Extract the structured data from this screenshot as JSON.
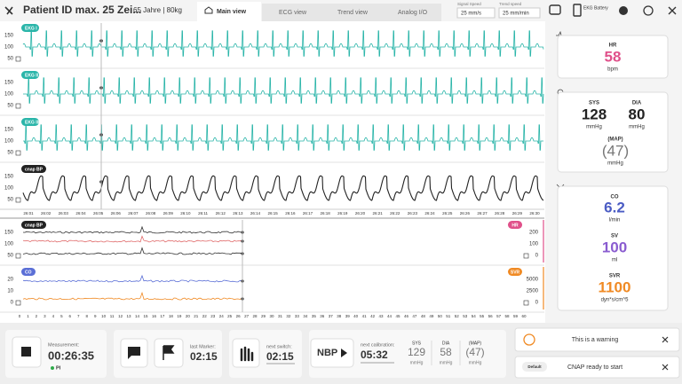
{
  "header": {
    "title": "Patient ID max. 25 Zei...",
    "info": "65 Jahre |  80kg",
    "tabs": [
      "Main view",
      "ECG view",
      "Trend view",
      "Analog I/O"
    ],
    "signal_speed_label": "Signal Speed",
    "signal_speed": "25 mm/s",
    "trend_speed_label": "Trend speed",
    "trend_speed": "25 mm/min",
    "battery": "EKG Battery"
  },
  "waveforms": {
    "channels": [
      {
        "label": "EKG I",
        "yticks": [
          150,
          100,
          50
        ]
      },
      {
        "label": "EKG II",
        "yticks": [
          150,
          100,
          50
        ]
      },
      {
        "label": "EKG III",
        "yticks": [
          150,
          100,
          50
        ]
      },
      {
        "label": "cnap BP",
        "yticks": [
          150,
          100,
          50
        ]
      }
    ],
    "time_axis": [
      "26:01",
      "26:02",
      "26:03",
      "26:04",
      "26:05",
      "26:06",
      "26:07",
      "26:08",
      "26:09",
      "26:10",
      "26:11",
      "26:12",
      "26:13",
      "26:14",
      "26:15",
      "26:16",
      "26:17",
      "26:18",
      "26:19",
      "26:20",
      "26:21",
      "26:22",
      "26:23",
      "26:24",
      "26:25",
      "26:26",
      "26:27",
      "26:28",
      "26:29",
      "26:30"
    ]
  },
  "trend": {
    "panels": [
      {
        "label": "cnap BP",
        "yticks": [
          150,
          100,
          50
        ],
        "right_label": "HR",
        "right_ticks": [
          200,
          100,
          0
        ]
      },
      {
        "label": "CO",
        "yticks": [
          20,
          10,
          0
        ],
        "right_label": "SVR",
        "right_ticks": [
          5000,
          2500,
          0
        ]
      }
    ],
    "axis": [
      0,
      1,
      2,
      3,
      4,
      5,
      6,
      7,
      8,
      9,
      10,
      11,
      12,
      13,
      14,
      15,
      16,
      17,
      18,
      19,
      20,
      21,
      22,
      23,
      24,
      25,
      26,
      27,
      28,
      29,
      30,
      31,
      32,
      33,
      34,
      35,
      36,
      37,
      38,
      39,
      40,
      41,
      42,
      43,
      44,
      45,
      46,
      47,
      48,
      49,
      50,
      51,
      52,
      53,
      54,
      55,
      56,
      57,
      58,
      59,
      60
    ]
  },
  "vitals": {
    "hr": {
      "label": "HR",
      "value": "58",
      "unit": "bpm"
    },
    "sys": {
      "label": "SYS",
      "value": "128",
      "unit": "mmHg"
    },
    "dia": {
      "label": "DIA",
      "value": "80",
      "unit": "mmHg"
    },
    "map": {
      "label": "(MAP)",
      "value": "(47)",
      "unit": "mmHg"
    },
    "co": {
      "label": "CO",
      "value": "6.2",
      "unit": "l/min"
    },
    "sv": {
      "label": "SV",
      "value": "100",
      "unit": "ml"
    },
    "svr": {
      "label": "SVR",
      "value": "1100",
      "unit": "dyn*s/cm^5"
    }
  },
  "bottom": {
    "measurement_label": "Measurement:",
    "measurement": "00:26:35",
    "pi": "PI",
    "last_marker_label": "last Marker:",
    "last_marker": "02:15",
    "next_switch_label": "next switch:",
    "next_switch": "02:15",
    "nbp": "NBP",
    "next_calibration_label": "next calibration:",
    "next_calibration": "05:32",
    "sys": {
      "label": "SYS",
      "value": "129",
      "unit": "mmHg"
    },
    "dia": {
      "label": "DIA",
      "value": "58",
      "unit": "mmHg"
    },
    "map": {
      "label": "(MAP)",
      "value": "(47)",
      "unit": "mmHg"
    }
  },
  "notifications": [
    {
      "text": "This is a warning"
    },
    {
      "tag": "Default",
      "text": "CNAP ready to start"
    }
  ]
}
